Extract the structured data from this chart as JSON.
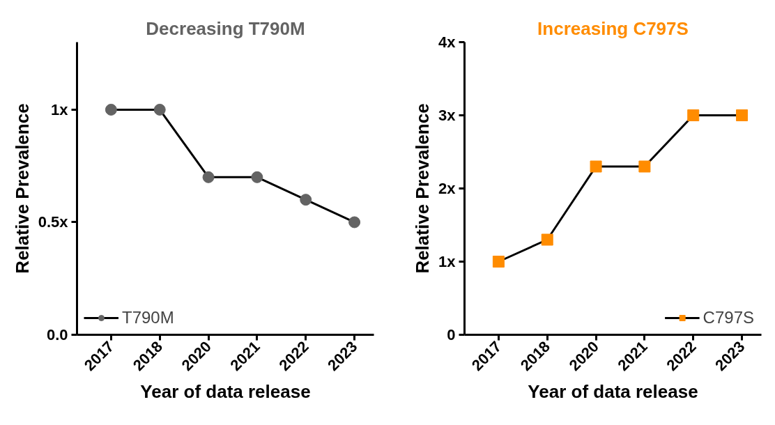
{
  "chart_data": [
    {
      "type": "line",
      "title": "Decreasing T790M",
      "xlabel": "Year of data release",
      "ylabel": "Relative Prevalence",
      "categories": [
        "2017",
        "2018",
        "2020",
        "2021",
        "2022",
        "2023"
      ],
      "series": [
        {
          "name": "T790M",
          "color": "#636363",
          "values": [
            1,
            1,
            0.7,
            0.7,
            0.6,
            0.5
          ]
        }
      ],
      "ylim": [
        0,
        1.3
      ],
      "yticks": [
        {
          "value": 0,
          "label": "0.0"
        },
        {
          "value": 0.5,
          "label": "0.5x"
        },
        {
          "value": 1,
          "label": "1x"
        }
      ],
      "marker": "circle",
      "line_style": "solid",
      "legend": "bottom left"
    },
    {
      "type": "line",
      "title": "Increasing C797S",
      "xlabel": "Year of data release",
      "ylabel": "Relative Prevalence",
      "categories": [
        "2017",
        "2018",
        "2020",
        "2021",
        "2022",
        "2023"
      ],
      "series": [
        {
          "name": "C797S",
          "color": "#ff8c00",
          "values": [
            1,
            1.3,
            2.3,
            2.3,
            3,
            3
          ]
        }
      ],
      "ylim": [
        0,
        4
      ],
      "yticks": [
        0,
        {
          "value": 1,
          "label": "1x"
        },
        {
          "value": 2,
          "label": "2x"
        },
        {
          "value": 3,
          "label": "3x"
        },
        {
          "value": 4,
          "label": "4x"
        }
      ],
      "marker": "square",
      "line_style": "solid",
      "legend": "bottom right"
    }
  ]
}
